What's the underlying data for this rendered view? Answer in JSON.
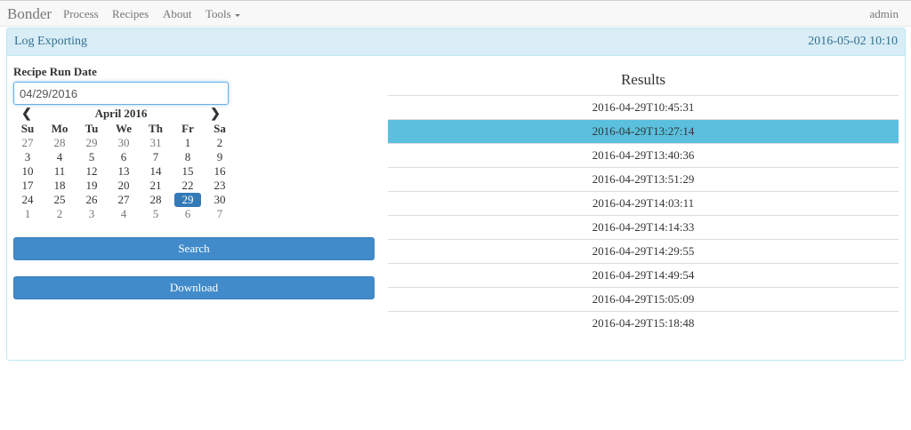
{
  "navbar": {
    "brand": "Bonder",
    "items": [
      "Process",
      "Recipes",
      "About",
      "Tools"
    ],
    "user": "admin"
  },
  "panel": {
    "title": "Log Exporting",
    "datetime": "2016-05-02 10:10"
  },
  "form": {
    "label": "Recipe Run Date",
    "date_value": "04/29/2016",
    "search_label": "Search",
    "download_label": "Download"
  },
  "calendar": {
    "month": "April 2016",
    "prev_glyph": "❮",
    "next_glyph": "❯",
    "weekdays": [
      "Su",
      "Mo",
      "Tu",
      "We",
      "Th",
      "Fr",
      "Sa"
    ],
    "weeks": [
      [
        27,
        28,
        29,
        30,
        31,
        1,
        2
      ],
      [
        3,
        4,
        5,
        6,
        7,
        8,
        9
      ],
      [
        10,
        11,
        12,
        13,
        14,
        15,
        16
      ],
      [
        17,
        18,
        19,
        20,
        21,
        22,
        23
      ],
      [
        24,
        25,
        26,
        27,
        28,
        29,
        30
      ],
      [
        1,
        2,
        3,
        4,
        5,
        6,
        7
      ]
    ],
    "selected": 29
  },
  "results": {
    "title": "Results",
    "items": [
      "2016-04-29T10:45:31",
      "2016-04-29T13:27:14",
      "2016-04-29T13:40:36",
      "2016-04-29T13:51:29",
      "2016-04-29T14:03:11",
      "2016-04-29T14:14:33",
      "2016-04-29T14:29:55",
      "2016-04-29T14:49:54",
      "2016-04-29T15:05:09",
      "2016-04-29T15:18:48"
    ],
    "selected_index": 1
  },
  "colors": {
    "panel_heading_bg": "#d9edf7",
    "panel_heading_text": "#31708f",
    "button_primary": "#428bca",
    "selected_row": "#5bc0de",
    "selected_day": "#337ab7"
  }
}
